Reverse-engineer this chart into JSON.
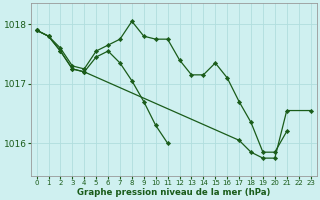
{
  "title": "Graphe pression niveau de la mer (hPa)",
  "bg_color": "#cff0f0",
  "grid_color": "#b0dede",
  "line_color": "#1a5c1a",
  "marker_color": "#1a5c1a",
  "xlim": [
    -0.5,
    23.5
  ],
  "ylim": [
    1015.45,
    1018.35
  ],
  "yticks": [
    1016,
    1017,
    1018
  ],
  "xticks": [
    0,
    1,
    2,
    3,
    4,
    5,
    6,
    7,
    8,
    9,
    10,
    11,
    12,
    13,
    14,
    15,
    16,
    17,
    18,
    19,
    20,
    21,
    22,
    23
  ],
  "series": [
    {
      "x": [
        0,
        1,
        2,
        3,
        4,
        5,
        6,
        7,
        8,
        9,
        10,
        11,
        12,
        13,
        14,
        15,
        16,
        17,
        18,
        19,
        20,
        21
      ],
      "y": [
        1017.9,
        1017.8,
        1017.6,
        1017.3,
        1017.25,
        1017.55,
        1017.65,
        1017.75,
        1018.05,
        1017.8,
        1017.75,
        1017.75,
        1017.4,
        1017.15,
        1017.15,
        1017.35,
        1017.1,
        1016.7,
        1016.35,
        1015.85,
        1015.85,
        1016.2
      ]
    },
    {
      "x": [
        0,
        1,
        2,
        3,
        4,
        5,
        6,
        7,
        8,
        9,
        10,
        11
      ],
      "y": [
        1017.9,
        1017.8,
        1017.55,
        1017.25,
        1017.2,
        1017.45,
        1017.55,
        1017.35,
        1017.05,
        1016.7,
        1016.3,
        1016.0
      ]
    },
    {
      "x": [
        0,
        1,
        2,
        3,
        4,
        17,
        18,
        19,
        20,
        21,
        23
      ],
      "y": [
        1017.9,
        1017.8,
        1017.55,
        1017.25,
        1017.2,
        1016.05,
        1015.85,
        1015.75,
        1015.75,
        1016.55,
        1016.55
      ]
    }
  ],
  "figsize": [
    3.2,
    2.0
  ],
  "dpi": 100
}
